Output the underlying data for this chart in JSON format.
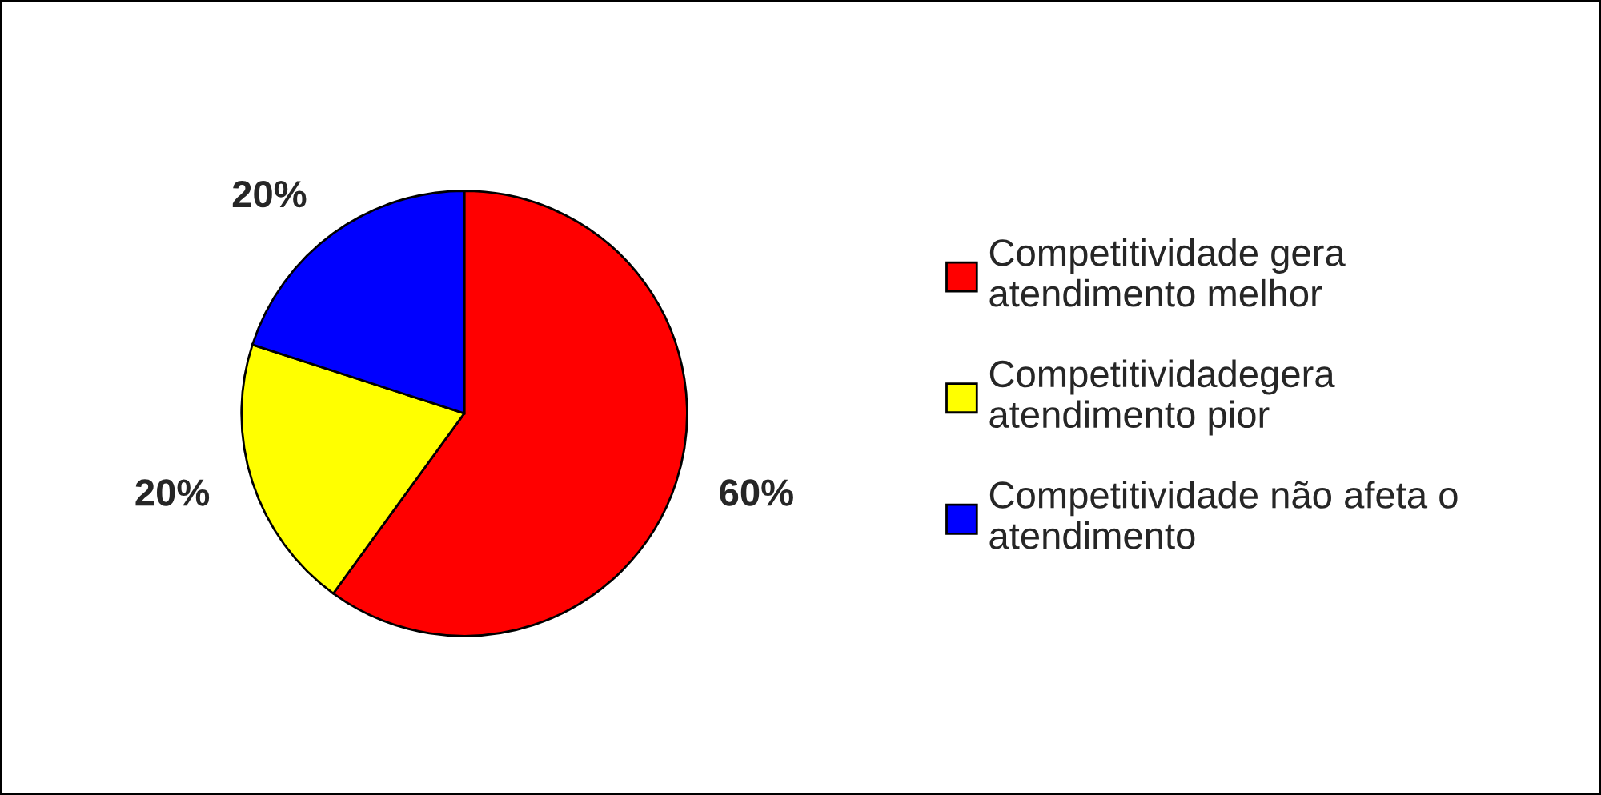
{
  "chart_data": {
    "type": "pie",
    "categories": [
      "Competitividade gera\natendimento melhor",
      "Competitividadegera\natendimento pior",
      "Competitividade não afeta o\natendimento"
    ],
    "values": [
      60,
      20,
      20
    ],
    "colors": [
      "#ff0000",
      "#ffff00",
      "#0000ff"
    ],
    "value_labels": [
      "60%",
      "20%",
      "20%"
    ],
    "legend": "right"
  }
}
